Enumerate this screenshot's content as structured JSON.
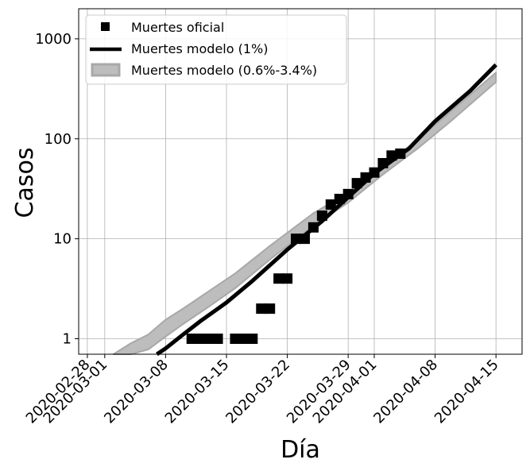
{
  "chart_data": {
    "type": "line",
    "xlabel": "Día",
    "ylabel": "Casos",
    "y_scale": "log",
    "ylim": [
      0.7,
      2000
    ],
    "xlim": [
      "2020-02-27",
      "2020-04-18"
    ],
    "grid": true,
    "legend_position": "top-left",
    "x_ticks": [
      "2020-02-28",
      "2020-03-01",
      "2020-03-08",
      "2020-03-15",
      "2020-03-22",
      "2020-03-29",
      "2020-04-01",
      "2020-04-08",
      "2020-04-15"
    ],
    "y_ticks": [
      1,
      10,
      100,
      1000
    ],
    "y_tick_labels": [
      "1",
      "10",
      "100",
      "1000"
    ],
    "series": [
      {
        "name": "Muertes oficial",
        "kind": "markers",
        "color": "#000000",
        "points": [
          {
            "x": "2020-03-11",
            "y": 1
          },
          {
            "x": "2020-03-12",
            "y": 1
          },
          {
            "x": "2020-03-13",
            "y": 1
          },
          {
            "x": "2020-03-14",
            "y": 1
          },
          {
            "x": "2020-03-16",
            "y": 1
          },
          {
            "x": "2020-03-17",
            "y": 1
          },
          {
            "x": "2020-03-18",
            "y": 1
          },
          {
            "x": "2020-03-19",
            "y": 2
          },
          {
            "x": "2020-03-20",
            "y": 2
          },
          {
            "x": "2020-03-21",
            "y": 4
          },
          {
            "x": "2020-03-22",
            "y": 4
          },
          {
            "x": "2020-03-23",
            "y": 10
          },
          {
            "x": "2020-03-24",
            "y": 10
          },
          {
            "x": "2020-03-25",
            "y": 13
          },
          {
            "x": "2020-03-26",
            "y": 17
          },
          {
            "x": "2020-03-27",
            "y": 22
          },
          {
            "x": "2020-03-28",
            "y": 25
          },
          {
            "x": "2020-03-29",
            "y": 28
          },
          {
            "x": "2020-03-30",
            "y": 36
          },
          {
            "x": "2020-03-31",
            "y": 41
          },
          {
            "x": "2020-04-01",
            "y": 46
          },
          {
            "x": "2020-04-02",
            "y": 57
          },
          {
            "x": "2020-04-03",
            "y": 68
          },
          {
            "x": "2020-04-04",
            "y": 71
          }
        ]
      },
      {
        "name": "Muertes modelo (1%)",
        "kind": "line",
        "color": "#000000",
        "points": [
          {
            "x": "2020-03-07",
            "y": 0.7
          },
          {
            "x": "2020-03-08",
            "y": 0.8
          },
          {
            "x": "2020-03-10",
            "y": 1.1
          },
          {
            "x": "2020-03-12",
            "y": 1.5
          },
          {
            "x": "2020-03-15",
            "y": 2.3
          },
          {
            "x": "2020-03-18",
            "y": 3.8
          },
          {
            "x": "2020-03-22",
            "y": 7.8
          },
          {
            "x": "2020-03-26",
            "y": 15
          },
          {
            "x": "2020-03-29",
            "y": 26
          },
          {
            "x": "2020-04-01",
            "y": 45
          },
          {
            "x": "2020-04-05",
            "y": 80
          },
          {
            "x": "2020-04-08",
            "y": 150
          },
          {
            "x": "2020-04-12",
            "y": 300
          },
          {
            "x": "2020-04-15",
            "y": 550
          }
        ]
      },
      {
        "name": "Muertes modelo (0.6%-3.4%)",
        "kind": "band",
        "color": "#bdbdbd",
        "upper": [
          {
            "x": "2020-03-02",
            "y": 0.7
          },
          {
            "x": "2020-03-04",
            "y": 0.9
          },
          {
            "x": "2020-03-06",
            "y": 1.1
          },
          {
            "x": "2020-03-08",
            "y": 1.55
          },
          {
            "x": "2020-03-10",
            "y": 2.0
          },
          {
            "x": "2020-03-13",
            "y": 3.0
          },
          {
            "x": "2020-03-16",
            "y": 4.5
          },
          {
            "x": "2020-03-20",
            "y": 8.5
          },
          {
            "x": "2020-03-25",
            "y": 18
          },
          {
            "x": "2020-03-29",
            "y": 29
          },
          {
            "x": "2020-04-02",
            "y": 52
          },
          {
            "x": "2020-04-06",
            "y": 98
          },
          {
            "x": "2020-04-10",
            "y": 195
          },
          {
            "x": "2020-04-15",
            "y": 460
          }
        ],
        "lower": [
          {
            "x": "2020-03-04",
            "y": 0.7
          },
          {
            "x": "2020-03-06",
            "y": 0.78
          },
          {
            "x": "2020-03-08",
            "y": 1.05
          },
          {
            "x": "2020-03-10",
            "y": 1.4
          },
          {
            "x": "2020-03-13",
            "y": 2.1
          },
          {
            "x": "2020-03-16",
            "y": 3.2
          },
          {
            "x": "2020-03-20",
            "y": 6.2
          },
          {
            "x": "2020-03-25",
            "y": 13.5
          },
          {
            "x": "2020-03-29",
            "y": 23
          },
          {
            "x": "2020-04-02",
            "y": 44
          },
          {
            "x": "2020-04-06",
            "y": 80
          },
          {
            "x": "2020-04-10",
            "y": 155
          },
          {
            "x": "2020-04-15",
            "y": 370
          }
        ]
      }
    ]
  }
}
